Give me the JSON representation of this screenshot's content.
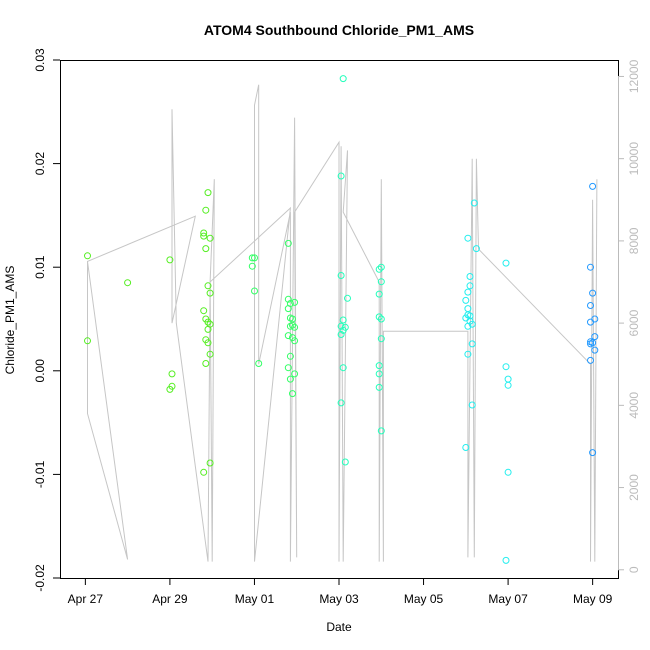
{
  "chart_data": {
    "type": "scatter",
    "title": "ATOM4 Southbound Chloride_PM1_AMS",
    "xlabel": "Date",
    "ylabel": "Chloride_PM1_AMS",
    "x_unit": "days since Apr 27 00:00",
    "xlim": [
      -0.6,
      12.6
    ],
    "ylim": [
      -0.02,
      0.03
    ],
    "y_ticks": [
      -0.02,
      -0.01,
      0.0,
      0.01,
      0.02,
      0.03
    ],
    "y_tick_labels": [
      "-0.02",
      "-0.01",
      "0.00",
      "0.01",
      "0.02",
      "0.03"
    ],
    "x_ticks": [
      0,
      2,
      4,
      6,
      8,
      10,
      12
    ],
    "x_tick_labels": [
      "Apr 27",
      "Apr 29",
      "May 01",
      "May 03",
      "May 05",
      "May 07",
      "May 09"
    ],
    "y2_label": "",
    "y2lim": [
      -200,
      12400
    ],
    "y2_ticks": [
      0,
      2000,
      4000,
      6000,
      8000,
      10000,
      12000
    ],
    "y2_tick_labels": [
      "0",
      "2000",
      "4000",
      "6000",
      "8000",
      "10000",
      "12000"
    ],
    "grid": false,
    "colors": {
      "axis": "#000000",
      "secondary_axis": "#bbbbbb",
      "altitude_line": "#c6c6c6",
      "point_colors": [
        "#55ee22",
        "#33ff66",
        "#22ffbb",
        "#22eeee",
        "#2299ff"
      ]
    },
    "series": [
      {
        "color": "#55ee22",
        "points": [
          [
            0.05,
            0.0111
          ],
          [
            0.05,
            0.0029
          ],
          [
            1.0,
            0.0085
          ],
          [
            2.0,
            0.0107
          ],
          [
            2.05,
            -0.0003
          ],
          [
            2.05,
            -0.0015
          ],
          [
            2.0,
            -0.0018
          ],
          [
            2.8,
            0.0133
          ],
          [
            2.8,
            0.013
          ],
          [
            2.85,
            0.0155
          ],
          [
            2.9,
            0.0172
          ],
          [
            2.95,
            0.0128
          ],
          [
            2.85,
            0.0118
          ],
          [
            2.9,
            0.0082
          ],
          [
            2.95,
            0.0075
          ],
          [
            2.8,
            0.0058
          ],
          [
            2.85,
            0.005
          ],
          [
            2.9,
            0.0047
          ],
          [
            2.95,
            0.0045
          ],
          [
            2.9,
            0.004
          ],
          [
            2.85,
            0.003
          ],
          [
            2.9,
            0.0027
          ],
          [
            2.95,
            0.0016
          ],
          [
            2.85,
            0.0007
          ],
          [
            2.8,
            -0.0098
          ],
          [
            2.95,
            -0.0089
          ]
        ]
      },
      {
        "color": "#33ff66",
        "points": [
          [
            3.95,
            0.0109
          ],
          [
            4.0,
            0.0109
          ],
          [
            3.95,
            0.0101
          ],
          [
            4.0,
            0.0077
          ],
          [
            4.1,
            0.0007
          ],
          [
            4.8,
            0.0123
          ],
          [
            4.8,
            0.0069
          ],
          [
            4.85,
            0.0065
          ],
          [
            4.8,
            0.006
          ],
          [
            4.95,
            0.0066
          ],
          [
            4.85,
            0.0051
          ],
          [
            4.9,
            0.005
          ],
          [
            4.85,
            0.0043
          ],
          [
            4.9,
            0.0044
          ],
          [
            4.95,
            0.0042
          ],
          [
            4.8,
            0.0034
          ],
          [
            4.9,
            0.0032
          ],
          [
            4.95,
            0.0029
          ],
          [
            4.85,
            0.0014
          ],
          [
            4.8,
            0.0003
          ],
          [
            4.95,
            -0.0003
          ],
          [
            4.85,
            -0.0008
          ],
          [
            4.9,
            -0.0022
          ]
        ]
      },
      {
        "color": "#22ffbb",
        "points": [
          [
            6.1,
            0.0282
          ],
          [
            6.05,
            0.0188
          ],
          [
            6.05,
            0.0092
          ],
          [
            6.2,
            0.007
          ],
          [
            6.1,
            0.0049
          ],
          [
            6.05,
            0.0043
          ],
          [
            6.15,
            0.0042
          ],
          [
            6.1,
            0.0039
          ],
          [
            6.05,
            0.0035
          ],
          [
            6.1,
            0.0003
          ],
          [
            6.05,
            -0.0031
          ],
          [
            6.15,
            -0.0088
          ],
          [
            6.95,
            0.0098
          ],
          [
            7.0,
            0.01
          ],
          [
            7.0,
            0.0086
          ],
          [
            6.95,
            0.0074
          ],
          [
            6.95,
            0.0052
          ],
          [
            7.0,
            0.005
          ],
          [
            7.0,
            0.0031
          ],
          [
            6.95,
            0.0005
          ],
          [
            6.95,
            -0.0003
          ],
          [
            6.95,
            -0.0016
          ],
          [
            7.0,
            -0.0058
          ]
        ]
      },
      {
        "color": "#22eeee",
        "points": [
          [
            9.05,
            0.0128
          ],
          [
            9.1,
            0.0091
          ],
          [
            9.1,
            0.0082
          ],
          [
            9.05,
            0.0076
          ],
          [
            9.0,
            0.0068
          ],
          [
            9.05,
            0.006
          ],
          [
            9.05,
            0.0054
          ],
          [
            9.1,
            0.0053
          ],
          [
            9.0,
            0.0051
          ],
          [
            9.1,
            0.0048
          ],
          [
            9.15,
            0.0045
          ],
          [
            9.05,
            0.0043
          ],
          [
            9.15,
            0.0026
          ],
          [
            9.05,
            0.0016
          ],
          [
            9.2,
            0.0162
          ],
          [
            9.25,
            0.0118
          ],
          [
            9.15,
            -0.0033
          ],
          [
            9.0,
            -0.0074
          ],
          [
            9.95,
            0.0104
          ],
          [
            9.95,
            0.0004
          ],
          [
            10.0,
            -0.0008
          ],
          [
            10.0,
            -0.0014
          ],
          [
            10.0,
            -0.0098
          ],
          [
            9.95,
            -0.0183
          ]
        ]
      },
      {
        "color": "#2299ff",
        "points": [
          [
            12.0,
            0.0178
          ],
          [
            11.95,
            0.01
          ],
          [
            12.0,
            0.0075
          ],
          [
            11.95,
            0.0063
          ],
          [
            12.05,
            0.005
          ],
          [
            11.95,
            0.0047
          ],
          [
            12.05,
            0.0033
          ],
          [
            11.95,
            0.0028
          ],
          [
            12.0,
            0.0027
          ],
          [
            11.95,
            0.0026
          ],
          [
            12.05,
            0.002
          ],
          [
            11.95,
            0.001
          ],
          [
            12.0,
            -0.0079
          ]
        ]
      }
    ],
    "altitude_trace": [
      [
        0.05,
        7500
      ],
      [
        0.05,
        3800
      ],
      [
        1.0,
        250
      ],
      [
        0.05,
        7500
      ],
      [
        2.6,
        8600
      ],
      [
        2.05,
        6000
      ],
      [
        2.05,
        11200
      ],
      [
        2.15,
        6000
      ],
      [
        2.9,
        200
      ],
      [
        2.95,
        7000
      ],
      [
        3.0,
        200
      ],
      [
        3.05,
        9500
      ],
      [
        2.95,
        7000
      ],
      [
        4.85,
        8800
      ],
      [
        4.0,
        200
      ],
      [
        4.0,
        11300
      ],
      [
        4.1,
        11800
      ],
      [
        4.1,
        5000
      ],
      [
        4.85,
        8700
      ],
      [
        4.85,
        200
      ],
      [
        4.95,
        11000
      ],
      [
        5.0,
        300
      ],
      [
        4.95,
        8700
      ],
      [
        6.0,
        10400
      ],
      [
        6.0,
        200
      ],
      [
        6.05,
        10300
      ],
      [
        6.1,
        200
      ],
      [
        6.2,
        10200
      ],
      [
        6.1,
        8700
      ],
      [
        6.95,
        7000
      ],
      [
        6.95,
        200
      ],
      [
        7.0,
        9500
      ],
      [
        7.05,
        200
      ],
      [
        7.05,
        5800
      ],
      [
        9.05,
        5800
      ],
      [
        9.05,
        300
      ],
      [
        9.15,
        10000
      ],
      [
        9.2,
        300
      ],
      [
        9.25,
        10000
      ],
      [
        9.3,
        7800
      ],
      [
        11.95,
        5000
      ],
      [
        11.95,
        200
      ],
      [
        12.0,
        9000
      ],
      [
        12.05,
        200
      ],
      [
        12.1,
        9500
      ]
    ]
  }
}
